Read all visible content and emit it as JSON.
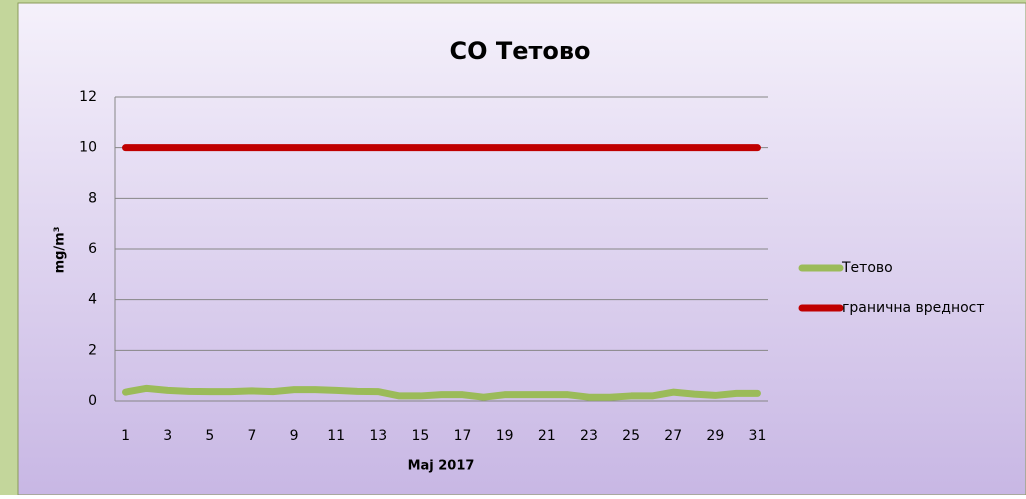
{
  "chart_data": {
    "type": "line",
    "title": "CO Тетово",
    "ylabel": "mg/m³",
    "xlabel": "Maj 2017",
    "categories": [
      1,
      null,
      3,
      null,
      5,
      null,
      7,
      null,
      9,
      null,
      11,
      null,
      13,
      null,
      15,
      null,
      17,
      null,
      19,
      null,
      21,
      null,
      23,
      null,
      25,
      null,
      27,
      null,
      29,
      null,
      31
    ],
    "series": [
      {
        "name": "Тетово",
        "color": "#9bbb59",
        "values": [
          0.35,
          0.5,
          0.42,
          0.38,
          0.37,
          0.37,
          0.4,
          0.37,
          0.45,
          0.45,
          0.42,
          0.38,
          0.37,
          0.2,
          0.2,
          0.25,
          0.25,
          0.15,
          0.25,
          0.25,
          0.25,
          0.25,
          0.15,
          0.15,
          0.2,
          0.2,
          0.35,
          0.27,
          0.22,
          0.3,
          0.3
        ]
      },
      {
        "name": "гранична вредност",
        "color": "#c00000",
        "values": [
          10,
          10,
          10,
          10,
          10,
          10,
          10,
          10,
          10,
          10,
          10,
          10,
          10,
          10,
          10,
          10,
          10,
          10,
          10,
          10,
          10,
          10,
          10,
          10,
          10,
          10,
          10,
          10,
          10,
          10,
          10
        ]
      }
    ],
    "ylim": [
      0,
      12
    ],
    "yticks": [
      0,
      2,
      4,
      6,
      8,
      10,
      12
    ],
    "grid": true,
    "legend": "right"
  }
}
